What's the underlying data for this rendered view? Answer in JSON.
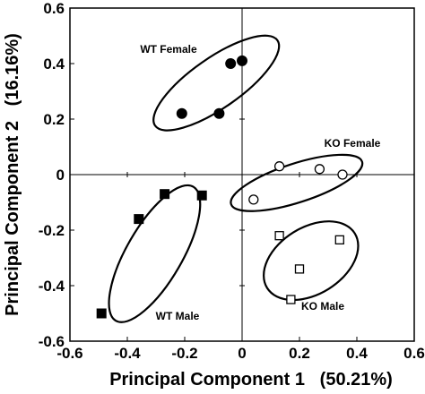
{
  "chart_data": {
    "type": "scatter",
    "title": "",
    "xlabel": "Principal Component 1   (50.21%)",
    "ylabel": "Principal Component 2   (16.16%)",
    "xlim": [
      -0.6,
      0.6
    ],
    "ylim": [
      -0.6,
      0.6
    ],
    "x_ticks": [
      -0.6,
      -0.4,
      -0.2,
      0,
      0.2,
      0.4,
      0.6
    ],
    "y_ticks": [
      -0.6,
      -0.4,
      -0.2,
      0,
      0.2,
      0.4,
      0.6
    ],
    "x_tick_labels": [
      "-0.6",
      "-0.4",
      "-0.2",
      "0",
      "0.2",
      "0.4",
      "0.6"
    ],
    "y_tick_labels": [
      "-0.6",
      "-0.4",
      "-0.2",
      "0",
      "0.2",
      "0.4",
      "0.6"
    ],
    "grid": false,
    "series": [
      {
        "name": "WT Female",
        "marker": "filled-circle",
        "x": [
          -0.21,
          -0.08,
          -0.04,
          0.0
        ],
        "y": [
          0.22,
          0.22,
          0.4,
          0.41
        ],
        "ellipse": {
          "cx": -0.09,
          "cy": 0.33,
          "rx": 0.26,
          "ry": 0.09,
          "angle_deg": 35
        }
      },
      {
        "name": "KO Female",
        "marker": "open-circle",
        "x": [
          0.04,
          0.13,
          0.27,
          0.35
        ],
        "y": [
          -0.09,
          0.03,
          0.02,
          0.0
        ],
        "ellipse": {
          "cx": 0.19,
          "cy": -0.03,
          "rx": 0.24,
          "ry": 0.07,
          "angle_deg": 18
        }
      },
      {
        "name": "WT Male",
        "marker": "filled-square",
        "x": [
          -0.49,
          -0.36,
          -0.27,
          -0.14
        ],
        "y": [
          -0.5,
          -0.16,
          -0.07,
          -0.075
        ],
        "ellipse": {
          "cx": -0.305,
          "cy": -0.285,
          "rx": 0.27,
          "ry": 0.1,
          "angle_deg": 60
        }
      },
      {
        "name": "KO Male",
        "marker": "open-square",
        "x": [
          0.13,
          0.17,
          0.2,
          0.34
        ],
        "y": [
          -0.22,
          -0.45,
          -0.34,
          -0.235
        ],
        "ellipse": {
          "cx": 0.24,
          "cy": -0.31,
          "rx": 0.18,
          "ry": 0.12,
          "angle_deg": 32
        }
      }
    ]
  }
}
